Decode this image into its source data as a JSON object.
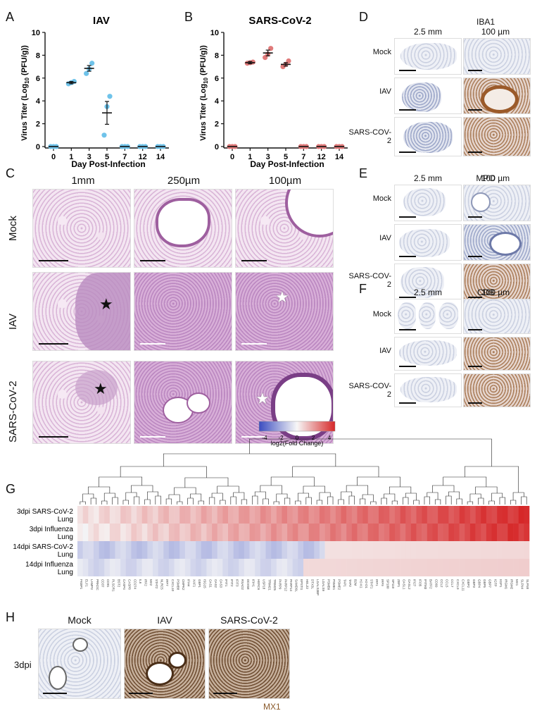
{
  "panels": {
    "A": "A",
    "B": "B",
    "C": "C",
    "D": "D",
    "E": "E",
    "F": "F",
    "G": "G",
    "H": "H"
  },
  "chart_data": [
    {
      "type": "scatter",
      "title": "IAV",
      "xlabel": "Day Post-Infection",
      "ylabel": "Virus Titer (Log10 (PFU/g))",
      "categories": [
        "0",
        "1",
        "3",
        "5",
        "7",
        "12",
        "14"
      ],
      "ylim": [
        0,
        10
      ],
      "yticks": [
        0,
        2,
        4,
        6,
        8,
        10
      ],
      "color": "#6fc3ea",
      "means": [
        0,
        5.6,
        6.85,
        2.95,
        0,
        0,
        0
      ],
      "sem": [
        0,
        0.1,
        0.25,
        1.0,
        0,
        0,
        0
      ],
      "points": [
        [
          0,
          0,
          0
        ],
        [
          5.5,
          5.6,
          5.7
        ],
        [
          6.4,
          6.8,
          7.3
        ],
        [
          1.0,
          3.5,
          4.4
        ],
        [
          0,
          0,
          0
        ],
        [
          0,
          0,
          0
        ],
        [
          0,
          0,
          0
        ]
      ]
    },
    {
      "type": "scatter",
      "title": "SARS-CoV-2",
      "xlabel": "Day Post-Infection",
      "ylabel": "Virus Titer (Log10 (PFU/g))",
      "categories": [
        "0",
        "1",
        "3",
        "5",
        "7",
        "12",
        "14"
      ],
      "ylim": [
        0,
        10
      ],
      "yticks": [
        0,
        2,
        4,
        6,
        8,
        10
      ],
      "color": "#e07a7a",
      "means": [
        0,
        7.35,
        8.2,
        7.2,
        0,
        0,
        0
      ],
      "sem": [
        0,
        0.1,
        0.25,
        0.15,
        0,
        0,
        0
      ],
      "points": [
        [
          0,
          0,
          0
        ],
        [
          7.3,
          7.35,
          7.4
        ],
        [
          7.8,
          8.1,
          8.6
        ],
        [
          7.0,
          7.2,
          7.5
        ],
        [
          0,
          0,
          0
        ],
        [
          0,
          0,
          0
        ],
        [
          0,
          0,
          0
        ]
      ]
    },
    {
      "type": "heatmap",
      "colorbar_label": "log2(Fold Change)",
      "colorbar_ticks": [
        "-4",
        "-2",
        "0",
        "2",
        "4"
      ],
      "rows": [
        "3dpi SARS-CoV-2 Lung",
        "3dpi Influenza Lung",
        "14dpi SARS-CoV-2 Lung",
        "14dpi Influenza Lung"
      ],
      "n_columns": 84
    }
  ],
  "chartA": {
    "title": "IAV",
    "xlabel": "Day Post-Infection",
    "ylabel_main": "Virus Titer (Log",
    "ylabel_sub": "10",
    "ylabel_end": " (PFU/g))"
  },
  "chartB": {
    "title": "SARS-CoV-2",
    "xlabel": "Day Post-Infection",
    "ylabel_main": "Virus Titer (Log",
    "ylabel_sub": "10",
    "ylabel_end": " (PFU/g))"
  },
  "panelC": {
    "columns": [
      "1mm",
      "250µm",
      "100µm"
    ],
    "rows": [
      "Mock",
      "IAV",
      "SARS-CoV-2"
    ]
  },
  "panelD": {
    "marker": "IBA1",
    "columns": [
      "2.5 mm",
      "100 µm"
    ],
    "rows": [
      "Mock",
      "IAV",
      "SARS-COV-2"
    ]
  },
  "panelE": {
    "marker": "MPO",
    "columns": [
      "2.5 mm",
      "100 µm"
    ],
    "rows": [
      "Mock",
      "IAV",
      "SARS-COV-2"
    ]
  },
  "panelF": {
    "marker": "CD3",
    "columns": [
      "2.5 mm",
      "100 µm"
    ],
    "rows": [
      "Mock",
      "IAV",
      "SARS-COV-2"
    ]
  },
  "panelG": {
    "colorbar_label": "log2(Fold Change)",
    "ticks": [
      "-4",
      "-2",
      "0",
      "2",
      "4"
    ],
    "rows": [
      {
        "l1": "3dpi SARS-CoV-2",
        "l2": "Lung"
      },
      {
        "l1": "3dpi Influenza",
        "l2": "Lung"
      },
      {
        "l1": "14dpi SARS-CoV-2",
        "l2": "Lung"
      },
      {
        "l1": "14dpi Influenza",
        "l2": "Lung"
      }
    ],
    "genes": [
      "FKBP1",
      "ELF1",
      "LAMP3",
      "PRKDC",
      "CD37",
      "CD81",
      "PLSCR1",
      "BST2",
      "CASP4",
      "CASP8",
      "CD274",
      "IL6",
      "IRF2",
      "MX2",
      "STAT2",
      "NLRC5",
      "IRF7",
      "CXCL10",
      "PSMB8",
      "CMPK2",
      "IFI44",
      "XAF1",
      "GBP1",
      "ISG15",
      "OAS1",
      "OAS2",
      "OAS3",
      "IFIT1",
      "IFIT2",
      "IFIT3",
      "RSAD2",
      "DDX58",
      "IFIH1",
      "HERC6",
      "USP18",
      "TRIM21",
      "TRIM25",
      "PARP9",
      "PARP12",
      "PARP14",
      "SAMD9L",
      "EPSTI1",
      "HELZ2",
      "DTX3L",
      "LGALS3BP",
      "LGALS9",
      "PSMB9",
      "PSME1",
      "PSME2",
      "TAP1",
      "TAP2",
      "B2M",
      "H2-K1",
      "H2-D1",
      "STAT1",
      "IRF1",
      "IRF9",
      "SP100",
      "SP110",
      "ZBP1",
      "OASL1",
      "OASL2",
      "IFI27",
      "IFI35",
      "IFITM3",
      "BATF2",
      "CD69",
      "CCL2",
      "CCL5",
      "CCL7",
      "CXCL9",
      "CXCL11",
      "GBP2",
      "GBP3",
      "GBP4",
      "GBP5",
      "GBP7",
      "IGTP",
      "IIGP1",
      "IRGM1",
      "IRGM2",
      "MX1",
      "SLFN4",
      "SLFN8"
    ]
  },
  "panelH": {
    "columns": [
      "Mock",
      "IAV",
      "SARS-CoV-2"
    ],
    "row": "3dpi",
    "stain": "MX1"
  }
}
